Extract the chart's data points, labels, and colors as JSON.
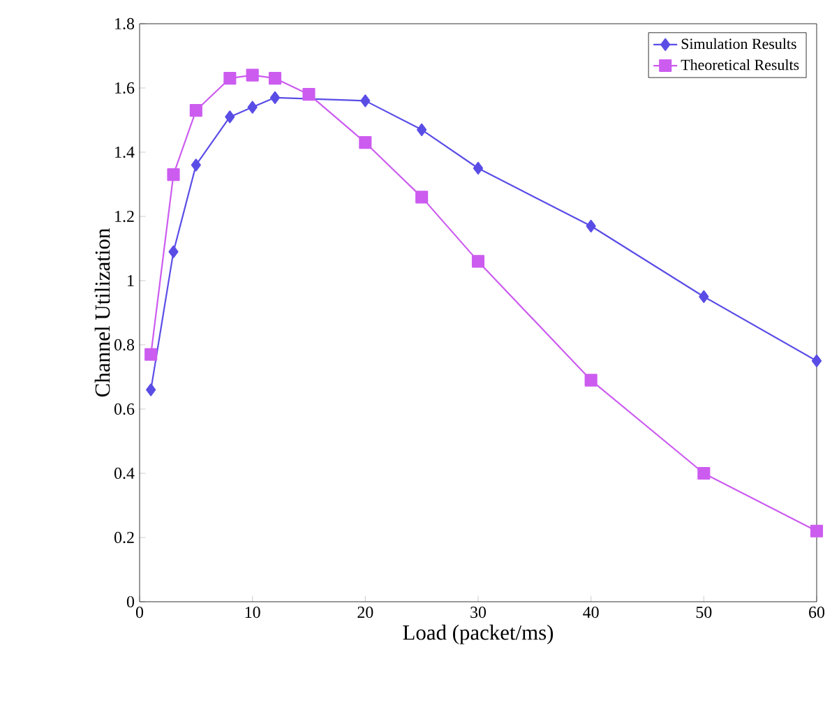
{
  "chart_data": {
    "type": "line",
    "xlabel": "Load (packet/ms)",
    "ylabel": "Channel Utilization",
    "xlim": [
      0,
      60
    ],
    "ylim": [
      0,
      1.8
    ],
    "xticks": [
      0,
      10,
      20,
      30,
      40,
      50,
      60
    ],
    "yticks": [
      0,
      0.2,
      0.4,
      0.6,
      0.8,
      1,
      1.2,
      1.4,
      1.6,
      1.8
    ],
    "legend": "top right",
    "grid": false,
    "line_style": "solid",
    "x": [
      1,
      3,
      5,
      8,
      10,
      12,
      15,
      20,
      25,
      30,
      40,
      50,
      60
    ],
    "series": [
      {
        "name": "Simulation Results",
        "color": "#5a4de6",
        "marker": "diamond",
        "values": [
          0.66,
          1.09,
          1.36,
          1.51,
          1.54,
          1.57,
          null,
          1.56,
          1.47,
          1.35,
          1.17,
          0.95,
          0.75
        ]
      },
      {
        "name": "Theoretical Results",
        "color": "#cc5cf0",
        "marker": "square",
        "values": [
          0.77,
          1.33,
          1.53,
          1.63,
          1.64,
          1.63,
          1.58,
          1.43,
          1.26,
          1.06,
          0.69,
          0.4,
          0.22
        ]
      }
    ]
  }
}
